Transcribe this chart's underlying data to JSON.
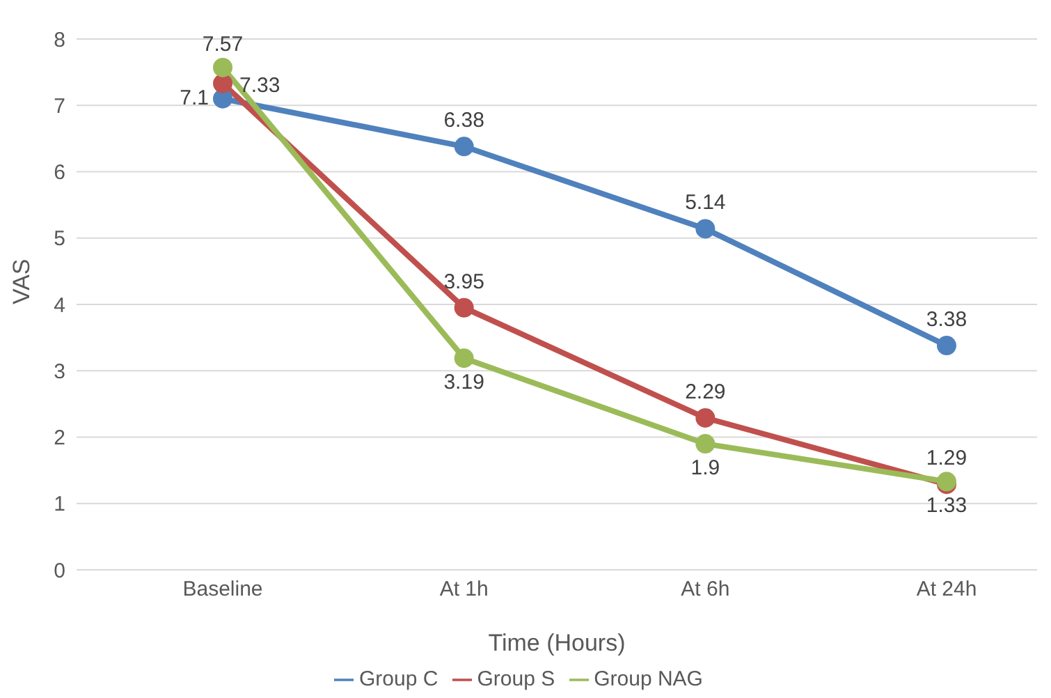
{
  "chart_data": {
    "type": "line",
    "xlabel": "Time (Hours)",
    "ylabel": "VAS",
    "categories": [
      "Baseline",
      "At 1h",
      "At 6h",
      "At 24h"
    ],
    "series": [
      {
        "name": "Group C",
        "color": "#4f81bd",
        "values": [
          7.1,
          6.38,
          5.14,
          3.38
        ]
      },
      {
        "name": "Group S",
        "color": "#c0504d",
        "values": [
          7.33,
          3.95,
          2.29,
          1.29
        ]
      },
      {
        "name": "Group NAG",
        "color": "#9bbb59",
        "values": [
          7.57,
          3.19,
          1.9,
          1.33
        ]
      }
    ],
    "ylim": [
      0,
      8
    ],
    "yticks": [
      0,
      1,
      2,
      3,
      4,
      5,
      6,
      7,
      8
    ],
    "grid": "y",
    "legend": "bottom",
    "marker": "circle",
    "line_style": "solid",
    "data_labels": true
  }
}
